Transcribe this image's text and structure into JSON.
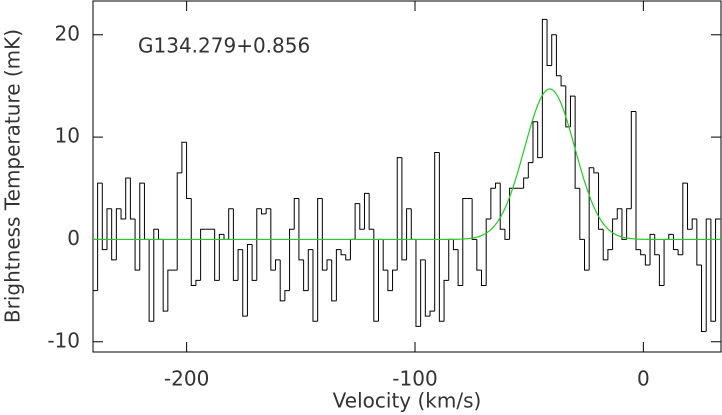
{
  "chart_data": {
    "type": "step",
    "annotation": "G134.279+0.856",
    "xlabel": "Velocity (km/s)",
    "ylabel": "Brightness Temperature (mK)",
    "xlim": [
      -241,
      34
    ],
    "ylim": [
      -11,
      23.3
    ],
    "xticks": [
      -200,
      -100,
      0
    ],
    "yticks": [
      -10,
      0,
      10,
      20
    ],
    "color": "#000000",
    "x": [
      -240,
      -237.95,
      -235.9,
      -233.85,
      -231.8,
      -229.75,
      -227.7,
      -225.65,
      -223.6,
      -221.55,
      -219.5,
      -217.45,
      -215.4,
      -213.35,
      -211.3,
      -209.25,
      -207.2,
      -205.15,
      -203.1,
      -201.05,
      -199,
      -196.95,
      -194.9,
      -192.85,
      -190.8,
      -188.75,
      -186.7,
      -184.65,
      -182.6,
      -180.55,
      -178.5,
      -176.45,
      -174.4,
      -172.35,
      -170.3,
      -168.25,
      -166.2,
      -164.15,
      -162.1,
      -160.05,
      -158,
      -155.95,
      -153.9,
      -151.85,
      -149.8,
      -147.75,
      -145.7,
      -143.65,
      -141.6,
      -139.55,
      -137.5,
      -135.45,
      -133.4,
      -131.35,
      -129.3,
      -127.25,
      -125.2,
      -123.15,
      -121.1,
      -119.05,
      -117,
      -114.95,
      -112.9,
      -110.85,
      -108.8,
      -106.75,
      -104.7,
      -102.65,
      -100.6,
      -98.55,
      -96.5,
      -94.45,
      -92.4,
      -90.35,
      -88.3,
      -86.25,
      -84.2,
      -82.15,
      -80.1,
      -78.05,
      -76,
      -73.95,
      -71.9,
      -69.85,
      -67.8,
      -65.75,
      -63.7,
      -61.65,
      -59.6,
      -57.55,
      -55.5,
      -53.45,
      -51.4,
      -49.35,
      -47.3,
      -45.25,
      -43.2,
      -41.15,
      -39.1,
      -37.05,
      -35,
      -32.95,
      -30.9,
      -28.85,
      -26.8,
      -24.75,
      -22.7,
      -20.65,
      -18.6,
      -16.55,
      -14.5,
      -12.45,
      -10.4,
      -8.35,
      -6.3,
      -4.25,
      -2.2,
      -0.15,
      1.9,
      3.95,
      6,
      8.05,
      10.1,
      12.15,
      14.2,
      16.25,
      18.3,
      20.35,
      22.4,
      24.45,
      26.5,
      28.55,
      30.6,
      32.65
    ],
    "values": [
      -5,
      5.5,
      -1,
      3,
      -2,
      3,
      2,
      6,
      2,
      -3,
      5.5,
      0,
      -8,
      1,
      0,
      -7,
      -3,
      -3,
      6.5,
      9.5,
      4,
      -4.5,
      -4,
      1,
      1,
      1,
      -4,
      0.5,
      0,
      3,
      -4,
      -1,
      -7.5,
      -0.5,
      -4,
      3,
      2.5,
      3,
      -3,
      -2,
      -6,
      -5,
      1,
      4,
      -2,
      -5,
      -1,
      -8,
      4,
      -3,
      -2,
      -6,
      -1,
      -1.5,
      -2,
      0,
      3.5,
      1,
      4.5,
      1,
      -8,
      0,
      -3,
      -5,
      -3,
      8,
      -2,
      3,
      0,
      -8.5,
      -2,
      -7.5,
      -7,
      8.5,
      -8,
      -4,
      0,
      -1,
      -4.5,
      4,
      4,
      0,
      -3,
      -4.5,
      2,
      5,
      5.5,
      1,
      0,
      5,
      5,
      5,
      6,
      7.5,
      11.5,
      8,
      21.5,
      17,
      20,
      16,
      15,
      11,
      14,
      5,
      0,
      -3,
      7,
      6.5,
      1,
      -2,
      -1,
      2,
      3,
      0,
      3,
      12.5,
      -1,
      -1.5,
      -2.5,
      0.5,
      -1.5,
      -4.5,
      0,
      0.5,
      -1,
      -1.5,
      5.5,
      1,
      2,
      -2.5,
      -9,
      2,
      -8,
      2
    ],
    "fit": {
      "amplitude": 14.7,
      "center": -41,
      "fwhm": 26,
      "color": "#22cc22"
    }
  }
}
